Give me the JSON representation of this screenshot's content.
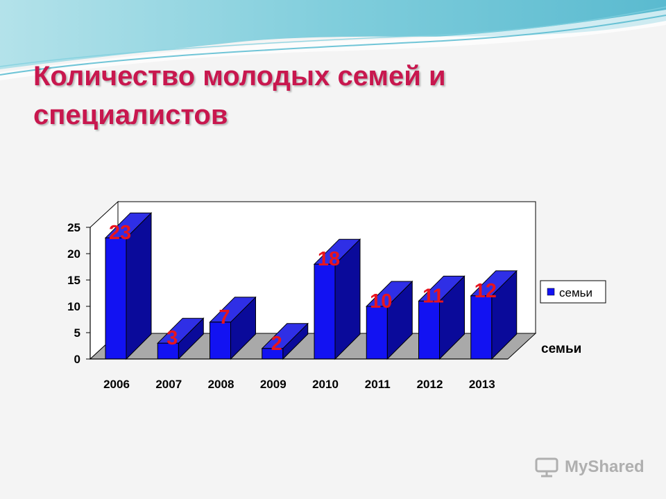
{
  "slide": {
    "title": "Количество молодых семей и специалистов",
    "watermark": "MyShared"
  },
  "colors": {
    "title": "#c8174e",
    "bar_front": "#1212f2",
    "bar_top": "#2f2fe6",
    "bar_side": "#0a0a9a",
    "data_label": "#e8141e",
    "floor": "#a9a9a9"
  },
  "chart_data": {
    "type": "bar",
    "style": "3d",
    "categories": [
      "2006",
      "2007",
      "2008",
      "2009",
      "2010",
      "2011",
      "2012",
      "2013"
    ],
    "series": [
      {
        "name": "семьи",
        "values": [
          23,
          3,
          7,
          2,
          18,
          10,
          11,
          12
        ]
      }
    ],
    "data_labels": [
      "23",
      "3",
      "7",
      "2",
      "18",
      "10",
      "11",
      "12"
    ],
    "y_ticks": [
      "0",
      "5",
      "10",
      "15",
      "20",
      "25"
    ],
    "ylim": [
      0,
      25
    ],
    "depth_axis_label": "семьи",
    "legend": {
      "position": "right",
      "entries": [
        "семьи"
      ]
    },
    "grid": false
  }
}
